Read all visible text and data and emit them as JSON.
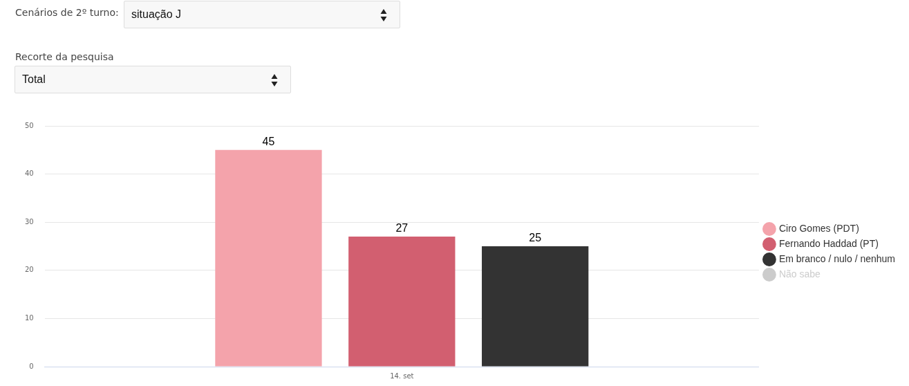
{
  "chart_data": {
    "type": "bar",
    "annotations": [
      "Cenários de 2º turno:",
      "situação J",
      "Recorte da pesquisa",
      "Total"
    ],
    "categories": [
      "14. set"
    ],
    "series": [
      {
        "name": "Ciro Gomes (PDT)",
        "color": "#f4a3ab",
        "values": [
          45
        ]
      },
      {
        "name": "Fernando Haddad (PT)",
        "color": "#d25f70",
        "values": [
          27
        ]
      },
      {
        "name": "Em branco / nulo / nenhum",
        "color": "#333333",
        "values": [
          25
        ]
      },
      {
        "name": "Não sabe",
        "color": "#cccccc",
        "values": [
          null
        ]
      }
    ],
    "ylim": [
      0,
      50
    ],
    "yticks": [
      0,
      10,
      20,
      30,
      40,
      50
    ],
    "grid": "y",
    "legend": "right",
    "data_labels": true
  }
}
